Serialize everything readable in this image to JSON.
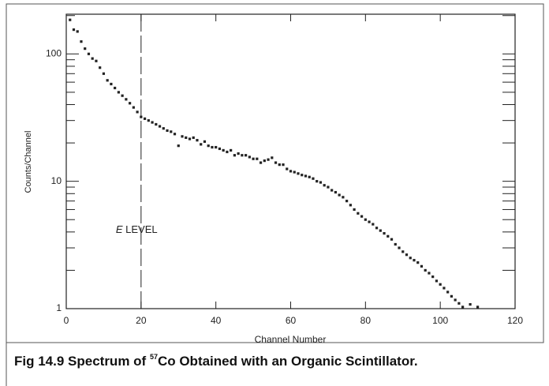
{
  "chart_data": {
    "type": "scatter",
    "caption": {
      "prefix": "Fig 14.9  Spectrum of ",
      "superscript": "57",
      "suffix": "Co Obtained with an Organic Scintillator."
    },
    "xlabel": "Channel Number",
    "ylabel": "Counts/Channel",
    "log_y": true,
    "color": "#222",
    "xlim": [
      0,
      120
    ],
    "xticks": [
      0,
      20,
      40,
      60,
      80,
      100,
      120
    ],
    "ylim": [
      1,
      205
    ],
    "yticks": [
      1,
      10,
      100
    ],
    "yminor_ticks": [
      2,
      3,
      4,
      5,
      6,
      7,
      8,
      9,
      20,
      30,
      40,
      50,
      60,
      70,
      80,
      90,
      200
    ],
    "annotation": {
      "x": 20,
      "italic": "E",
      "text": "LEVEL"
    },
    "x": [
      1,
      2,
      3,
      4,
      5,
      6,
      7,
      8,
      9,
      10,
      11,
      12,
      13,
      14,
      15,
      16,
      17,
      18,
      19,
      20,
      21,
      22,
      23,
      24,
      25,
      26,
      27,
      28,
      29,
      30,
      31,
      32,
      33,
      34,
      35,
      36,
      37,
      38,
      39,
      40,
      41,
      42,
      43,
      44,
      45,
      46,
      47,
      48,
      49,
      50,
      51,
      52,
      53,
      54,
      55,
      56,
      57,
      58,
      59,
      60,
      61,
      62,
      63,
      64,
      65,
      66,
      67,
      68,
      69,
      70,
      71,
      72,
      73,
      74,
      75,
      76,
      77,
      78,
      79,
      80,
      81,
      82,
      83,
      84,
      85,
      86,
      87,
      88,
      89,
      90,
      91,
      92,
      93,
      94,
      95,
      96,
      97,
      98,
      99,
      100,
      101,
      102,
      103,
      104,
      105,
      106,
      108,
      110
    ],
    "values": [
      185,
      155,
      150,
      125,
      110,
      100,
      92,
      88,
      78,
      70,
      62,
      58,
      54,
      50,
      47,
      44,
      41,
      38,
      35,
      32,
      31,
      30,
      29,
      28,
      27,
      26,
      25,
      24.5,
      23.5,
      19,
      22.5,
      22,
      21.5,
      22,
      21,
      19.5,
      20.5,
      19,
      18.5,
      18.5,
      18,
      17.5,
      17,
      17.5,
      16,
      16.5,
      16,
      16,
      15.5,
      15,
      15,
      14,
      14.5,
      14.8,
      15.3,
      14,
      13.5,
      13.5,
      12.5,
      12,
      11.8,
      11.5,
      11.2,
      11,
      10.8,
      10.5,
      10,
      9.8,
      9.3,
      9,
      8.5,
      8.2,
      7.8,
      7.5,
      7,
      6.5,
      6,
      5.6,
      5.3,
      5,
      4.8,
      4.6,
      4.3,
      4.1,
      3.9,
      3.7,
      3.5,
      3.2,
      3.0,
      2.8,
      2.65,
      2.5,
      2.4,
      2.3,
      2.15,
      2.0,
      1.9,
      1.78,
      1.65,
      1.55,
      1.45,
      1.35,
      1.25,
      1.17,
      1.1,
      1.03,
      1.08,
      1.03
    ]
  }
}
